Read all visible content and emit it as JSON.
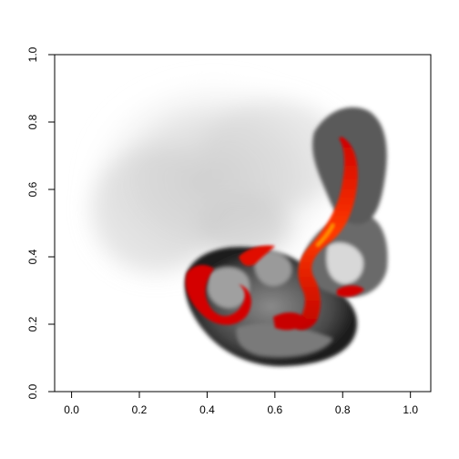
{
  "chart_data": {
    "type": "heatmap",
    "title": "",
    "xlabel": "",
    "ylabel": "",
    "xlim": [
      -0.05,
      1.06
    ],
    "ylim": [
      0,
      1.0
    ],
    "x_ticks": [
      0.0,
      0.2,
      0.4,
      0.6,
      0.8,
      1.0
    ],
    "x_tick_labels": [
      "0.0",
      "0.2",
      "0.4",
      "0.6",
      "0.8",
      "1.0"
    ],
    "y_ticks": [
      0.0,
      0.2,
      0.4,
      0.6,
      0.8,
      1.0
    ],
    "y_tick_labels": [
      "0.0",
      "0.2",
      "0.4",
      "0.6",
      "0.8",
      "1.0"
    ],
    "y_tick_labels_rotated": true,
    "grid": false,
    "legend": "none",
    "colormap": [
      "#ffffff",
      "#bdbdbd",
      "#3a3a3a",
      "#000000",
      "#c80000",
      "#ff3000",
      "#ffb000"
    ],
    "description_regions": [
      {
        "name": "diffuse-gray-halo",
        "center": [
          0.38,
          0.63
        ],
        "radius": 0.28,
        "intensity": 0.15
      },
      {
        "name": "dark-lobe",
        "center": [
          0.58,
          0.25
        ],
        "radius": 0.2,
        "intensity": 0.7
      },
      {
        "name": "hot-ridge",
        "points": [
          [
            0.81,
            0.75
          ],
          [
            0.83,
            0.6
          ],
          [
            0.78,
            0.47
          ],
          [
            0.72,
            0.4
          ],
          [
            0.75,
            0.3
          ],
          [
            0.72,
            0.22
          ]
        ],
        "intensity": 1.0
      }
    ]
  }
}
